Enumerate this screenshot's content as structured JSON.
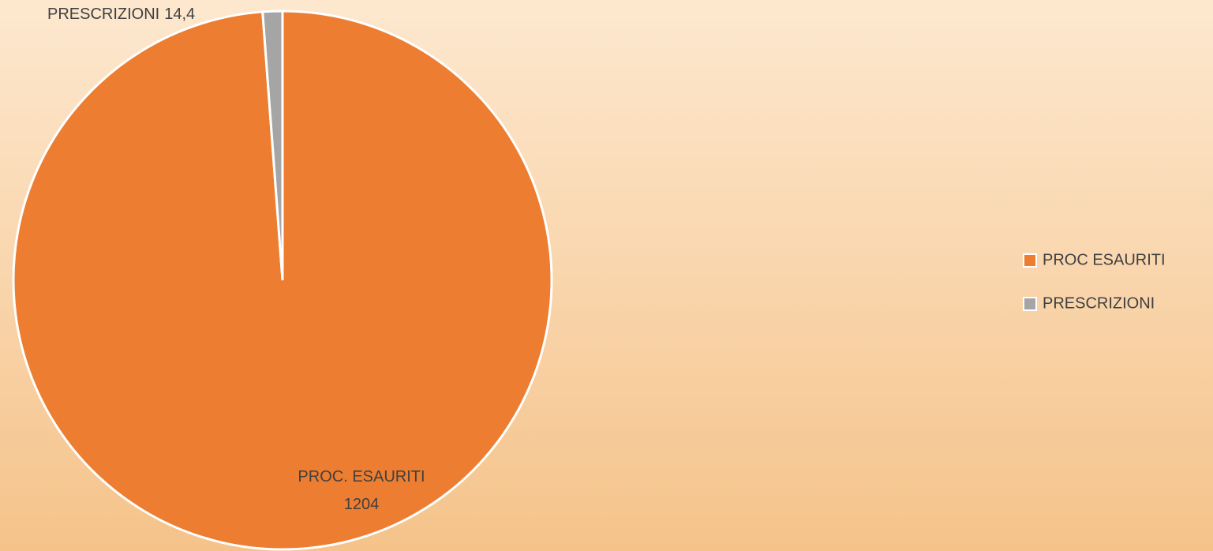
{
  "chart_data": {
    "type": "pie",
    "categories": [
      "PROC ESAURITI",
      "PRESCRIZIONI"
    ],
    "values": [
      1204,
      14.4
    ],
    "value_labels": [
      "1204",
      "14,4"
    ],
    "data_label_names": [
      "PROC. ESAURITI",
      "PRESCRIZIONI"
    ],
    "colors": [
      "#ed7d31",
      "#a5a5a5"
    ],
    "legend": "right"
  }
}
